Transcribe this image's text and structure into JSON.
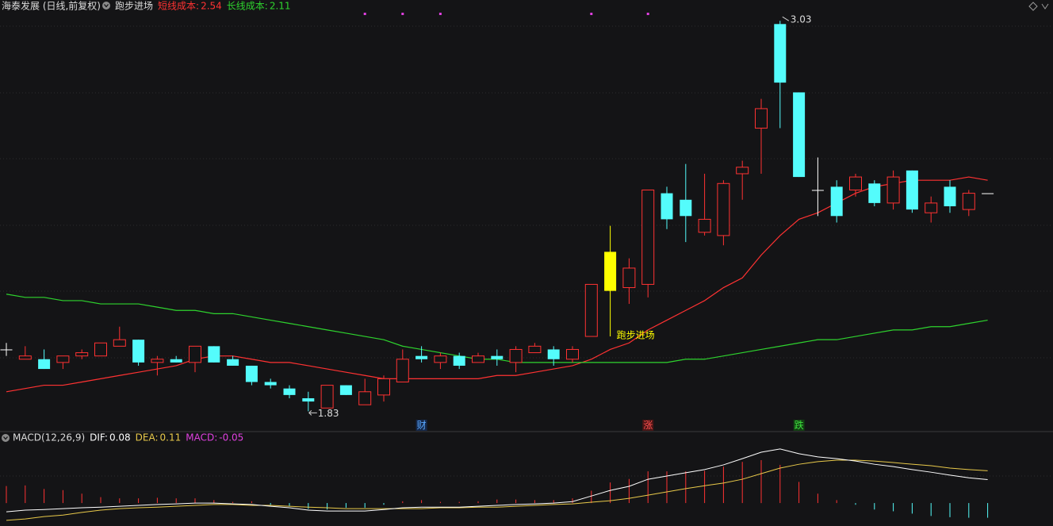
{
  "header": {
    "title": "海泰发展 (日线,前复权)",
    "indicator": "跑步进场"
  },
  "chart_data": [
    {
      "type": "candlestick",
      "ylim": [
        1.77,
        3.05
      ],
      "colors": {
        "up": "#ff3232",
        "down": "#54fcfc",
        "flat": "#ffffff"
      },
      "ohlc": [
        [
          2.02,
          2.04,
          2.0,
          2.02
        ],
        [
          1.99,
          2.03,
          1.99,
          2.0
        ],
        [
          1.99,
          2.02,
          1.96,
          1.96
        ],
        [
          1.98,
          2.0,
          1.96,
          2.0
        ],
        [
          2.0,
          2.02,
          1.99,
          2.01
        ],
        [
          2.0,
          2.04,
          2.0,
          2.04
        ],
        [
          2.03,
          2.09,
          2.03,
          2.05
        ],
        [
          2.05,
          2.05,
          1.97,
          1.98
        ],
        [
          1.98,
          2.0,
          1.94,
          1.99
        ],
        [
          1.99,
          2.0,
          1.98,
          1.98
        ],
        [
          1.98,
          2.03,
          1.95,
          2.03
        ],
        [
          2.03,
          2.03,
          1.98,
          1.98
        ],
        [
          1.99,
          2.0,
          1.97,
          1.97
        ],
        [
          1.97,
          1.97,
          1.91,
          1.92
        ],
        [
          1.92,
          1.93,
          1.9,
          1.91
        ],
        [
          1.9,
          1.91,
          1.87,
          1.88
        ],
        [
          1.87,
          1.89,
          1.83,
          1.86
        ],
        [
          1.84,
          1.91,
          1.84,
          1.91
        ],
        [
          1.91,
          1.91,
          1.88,
          1.88
        ],
        [
          1.85,
          1.93,
          1.85,
          1.89
        ],
        [
          1.88,
          1.94,
          1.86,
          1.93
        ],
        [
          1.92,
          2.02,
          1.92,
          1.99
        ],
        [
          2.0,
          2.03,
          1.98,
          1.99
        ],
        [
          1.98,
          2.01,
          1.96,
          2.0
        ],
        [
          2.0,
          2.01,
          1.96,
          1.97
        ],
        [
          1.98,
          2.01,
          1.98,
          2.0
        ],
        [
          2.0,
          2.02,
          1.97,
          1.99
        ],
        [
          1.98,
          2.03,
          1.95,
          2.02
        ],
        [
          2.01,
          2.04,
          2.01,
          2.03
        ],
        [
          2.02,
          2.03,
          1.97,
          1.99
        ],
        [
          1.99,
          2.03,
          1.98,
          2.02
        ],
        [
          2.06,
          2.22,
          2.06,
          2.22
        ],
        [
          2.2,
          2.4,
          2.06,
          2.32
        ],
        [
          2.21,
          2.3,
          2.16,
          2.27
        ],
        [
          2.22,
          2.51,
          2.18,
          2.51
        ],
        [
          2.5,
          2.52,
          2.39,
          2.42
        ],
        [
          2.48,
          2.59,
          2.35,
          2.43
        ],
        [
          2.38,
          2.56,
          2.37,
          2.42
        ],
        [
          2.37,
          2.54,
          2.34,
          2.53
        ],
        [
          2.56,
          2.6,
          2.48,
          2.58
        ],
        [
          2.7,
          2.79,
          2.56,
          2.76
        ],
        [
          3.02,
          3.03,
          2.7,
          2.84
        ],
        [
          2.81,
          2.81,
          2.55,
          2.55
        ],
        [
          2.51,
          2.61,
          2.43,
          2.51
        ],
        [
          2.52,
          2.54,
          2.41,
          2.43
        ],
        [
          2.51,
          2.56,
          2.49,
          2.55
        ],
        [
          2.53,
          2.54,
          2.46,
          2.47
        ],
        [
          2.47,
          2.57,
          2.45,
          2.55
        ],
        [
          2.57,
          2.57,
          2.44,
          2.45
        ],
        [
          2.44,
          2.49,
          2.41,
          2.47
        ],
        [
          2.52,
          2.54,
          2.44,
          2.46
        ],
        [
          2.45,
          2.51,
          2.43,
          2.5
        ],
        [
          2.5,
          2.5,
          2.5,
          2.5
        ]
      ],
      "series": [
        {
          "name": "短线成本:",
          "color": "#ff3232",
          "values": [
            1.89,
            1.9,
            1.91,
            1.91,
            1.92,
            1.93,
            1.94,
            1.95,
            1.96,
            1.97,
            1.99,
            2.0,
            2.0,
            1.99,
            1.98,
            1.98,
            1.97,
            1.96,
            1.95,
            1.94,
            1.93,
            1.93,
            1.93,
            1.93,
            1.93,
            1.93,
            1.94,
            1.94,
            1.95,
            1.96,
            1.97,
            1.99,
            2.02,
            2.04,
            2.08,
            2.11,
            2.14,
            2.17,
            2.21,
            2.24,
            2.31,
            2.37,
            2.42,
            2.44,
            2.47,
            2.5,
            2.52,
            2.53,
            2.54,
            2.54,
            2.54,
            2.55,
            2.54
          ]
        },
        {
          "name": "长线成本:",
          "color": "#2ed32e",
          "values": [
            2.19,
            2.18,
            2.18,
            2.17,
            2.17,
            2.16,
            2.16,
            2.16,
            2.15,
            2.14,
            2.14,
            2.13,
            2.13,
            2.12,
            2.11,
            2.1,
            2.09,
            2.08,
            2.07,
            2.06,
            2.05,
            2.03,
            2.02,
            2.01,
            2.0,
            1.99,
            1.99,
            1.98,
            1.98,
            1.98,
            1.98,
            1.98,
            1.98,
            1.98,
            1.98,
            1.98,
            1.99,
            1.99,
            2.0,
            2.01,
            2.02,
            2.03,
            2.04,
            2.05,
            2.05,
            2.06,
            2.07,
            2.08,
            2.08,
            2.09,
            2.09,
            2.1,
            2.11
          ]
        }
      ],
      "annotations": [
        {
          "text": "跑步进场",
          "index": 32,
          "color": "#ffff00"
        }
      ],
      "extremes": [
        {
          "value": 3.03,
          "index": 41
        },
        {
          "value": 1.83,
          "index": 16
        }
      ],
      "events": [
        {
          "text": "财",
          "index": 22,
          "color": "#5aa9ff",
          "background": "#15284a"
        },
        {
          "text": "涨",
          "index": 34,
          "color": "#ff5050",
          "background": "#4a1515"
        },
        {
          "text": "跌",
          "index": 42,
          "color": "#3ee03e",
          "background": "#124012"
        }
      ],
      "dots": {
        "color": "#e040e0",
        "indices": [
          19,
          21,
          23,
          31,
          34
        ]
      }
    },
    {
      "type": "macd",
      "title": "MACD(12,26,9)",
      "ylim": [
        -0.07,
        0.2
      ],
      "series": [
        {
          "name": "DIF:",
          "color": "#ffffff",
          "values": [
            -0.03,
            -0.024,
            -0.022,
            -0.019,
            -0.016,
            -0.014,
            -0.011,
            -0.008,
            -0.005,
            -0.003,
            0,
            0,
            -0.003,
            -0.005,
            -0.011,
            -0.016,
            -0.024,
            -0.027,
            -0.027,
            -0.027,
            -0.022,
            -0.016,
            -0.014,
            -0.014,
            -0.014,
            -0.011,
            -0.008,
            -0.005,
            -0.003,
            0,
            0.005,
            0.024,
            0.043,
            0.057,
            0.081,
            0.092,
            0.103,
            0.114,
            0.13,
            0.151,
            0.173,
            0.184,
            0.168,
            0.157,
            0.151,
            0.143,
            0.132,
            0.124,
            0.114,
            0.105,
            0.095,
            0.086,
            0.08
          ]
        },
        {
          "name": "DEA:",
          "color": "#e8c94a",
          "values": [
            -0.059,
            -0.054,
            -0.046,
            -0.041,
            -0.032,
            -0.024,
            -0.019,
            -0.016,
            -0.014,
            -0.011,
            -0.008,
            -0.005,
            -0.005,
            -0.008,
            -0.008,
            -0.011,
            -0.014,
            -0.016,
            -0.019,
            -0.019,
            -0.019,
            -0.019,
            -0.019,
            -0.016,
            -0.016,
            -0.014,
            -0.014,
            -0.011,
            -0.008,
            -0.005,
            -0.003,
            0.003,
            0.008,
            0.016,
            0.027,
            0.038,
            0.049,
            0.059,
            0.068,
            0.081,
            0.1,
            0.119,
            0.132,
            0.141,
            0.146,
            0.146,
            0.143,
            0.138,
            0.132,
            0.127,
            0.119,
            0.114,
            0.11
          ]
        }
      ],
      "histogram": {
        "name": "MACD:",
        "color": "#e040e0",
        "colors": {
          "up": "#ff3232",
          "down": "#54fcfc"
        },
        "values": [
          0.058,
          0.06,
          0.048,
          0.044,
          0.032,
          0.02,
          0.016,
          0.016,
          0.018,
          0.016,
          0.016,
          0.01,
          0.004,
          0.006,
          -0.006,
          -0.01,
          -0.02,
          -0.022,
          -0.016,
          -0.016,
          -0.006,
          0.006,
          0.01,
          0.004,
          0.004,
          0.006,
          0.012,
          0.012,
          0.01,
          0.01,
          0.016,
          0.042,
          0.07,
          0.082,
          0.108,
          0.108,
          0.108,
          0.11,
          0.124,
          0.14,
          0.146,
          0.13,
          0.072,
          0.032,
          0.01,
          -0.006,
          -0.022,
          -0.028,
          -0.036,
          -0.044,
          -0.048,
          -0.05,
          -0.05
        ]
      }
    }
  ]
}
